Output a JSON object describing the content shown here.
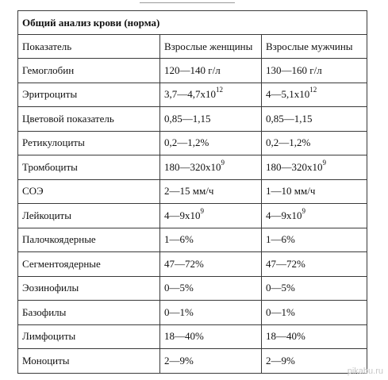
{
  "table": {
    "title": "Общий анализ крови (норма)",
    "headers": [
      "Показатель",
      "Взрослые женщины",
      "Взрослые мужчины"
    ],
    "rows": [
      {
        "name": "Гемоглобин",
        "women": "120—140 г/л",
        "women_sup": "",
        "men": "130—160 г/л",
        "men_sup": ""
      },
      {
        "name": "Эритроциты",
        "women": "3,7—4,7x10",
        "women_sup": "12",
        "men": "4—5,1x10",
        "men_sup": "12"
      },
      {
        "name": "Цветовой показатель",
        "women": "0,85—1,15",
        "women_sup": "",
        "men": "0,85—1,15",
        "men_sup": ""
      },
      {
        "name": "Ретикулоциты",
        "women": "0,2—1,2%",
        "women_sup": "",
        "men": "0,2—1,2%",
        "men_sup": ""
      },
      {
        "name": "Тромбоциты",
        "women": "180—320x10",
        "women_sup": "9",
        "men": "180—320x10",
        "men_sup": "9"
      },
      {
        "name": "СОЭ",
        "women": "2—15 мм/ч",
        "women_sup": "",
        "men": "1—10 мм/ч",
        "men_sup": ""
      },
      {
        "name": "Лейкоциты",
        "women": "4—9x10",
        "women_sup": "9",
        "men": "4—9x10",
        "men_sup": "9"
      },
      {
        "name": "Палочкоядерные",
        "women": "1—6%",
        "women_sup": "",
        "men": "1—6%",
        "men_sup": ""
      },
      {
        "name": "Сегментоядерные",
        "women": "47—72%",
        "women_sup": "",
        "men": "47—72%",
        "men_sup": ""
      },
      {
        "name": "Эозинофилы",
        "women": "0—5%",
        "women_sup": "",
        "men": "0—5%",
        "men_sup": ""
      },
      {
        "name": "Базофилы",
        "women": "0—1%",
        "women_sup": "",
        "men": "0—1%",
        "men_sup": ""
      },
      {
        "name": "Лимфоциты",
        "women": "18—40%",
        "women_sup": "",
        "men": "18—40%",
        "men_sup": ""
      },
      {
        "name": "Моноциты",
        "women": "2—9%",
        "women_sup": "",
        "men": "2—9%",
        "men_sup": ""
      }
    ]
  },
  "watermark": "pikabu.ru"
}
